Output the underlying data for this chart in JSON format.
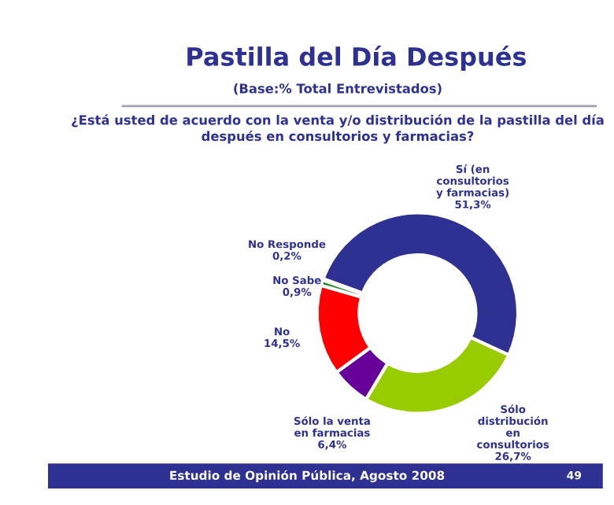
{
  "chart_data": {
    "type": "donut",
    "title": "Pastilla del Día Después",
    "subtitle": "(Base:% Total Entrevistados)\n\n¿Está usted de acuerdo con la venta y/o distribución de la pastilla del día\ndespués en consultorios y farmacias?",
    "categories": [
      "Sí (en\nconsultorios\ny farmacias)",
      "Sólo\ndistribución\nen\nconsultorios",
      "Sólo la venta\nen farmacias",
      "No",
      "No Sabe",
      "No Responde"
    ],
    "values": [
      51.3,
      26.7,
      6.4,
      14.5,
      0.9,
      0.2
    ],
    "value_labels": [
      "51,3%",
      "26,7%",
      "6,4%",
      "14,5%",
      "0,9%",
      "0,2%"
    ],
    "colors": [
      "#2e3192",
      "#99cc00",
      "#660099",
      "#ff0000",
      "#2e8b2e",
      "#ccffcc"
    ],
    "annotations": [
      "Estudio de Opinión Pública, Agosto 2008",
      "49"
    ]
  }
}
